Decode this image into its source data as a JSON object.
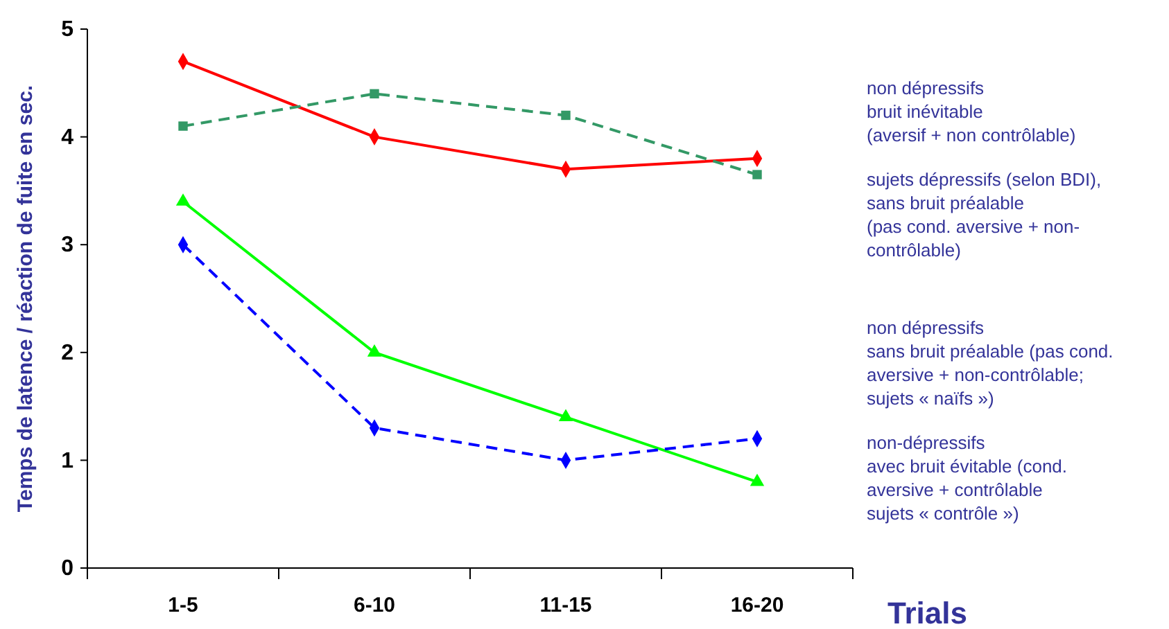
{
  "chart_data": {
    "type": "line",
    "xlabel": "Trials",
    "ylabel": "Temps de latence / réaction de fuite en sec.",
    "categories": [
      "1-5",
      "6-10",
      "11-15",
      "16-20"
    ],
    "series": [
      {
        "color": "#ff0000",
        "values": [
          4.7,
          4.0,
          3.7,
          3.8
        ],
        "marker": "diamond",
        "line_style": "solid"
      },
      {
        "color": "#339966",
        "values": [
          4.1,
          4.4,
          4.2,
          3.65
        ],
        "marker": "square",
        "line_style": "dashed"
      },
      {
        "color": "#00ff00",
        "values": [
          3.4,
          2.0,
          1.4,
          0.8
        ],
        "marker": "triangle",
        "line_style": "solid"
      },
      {
        "color": "#0000ff",
        "values": [
          3.0,
          1.3,
          1.0,
          1.2
        ],
        "marker": "diamond",
        "line_style": "dashed"
      }
    ],
    "ylim": [
      0,
      5
    ],
    "yticks": [
      0,
      1,
      2,
      3,
      4,
      5
    ],
    "annotations": [
      "non dépressifs\nbruit inévitable\n(aversif + non contrôlable)",
      "sujets dépressifs (selon BDI),\nsans bruit préalable\n(pas cond. aversive + non-\ncontrôlable)",
      "non dépressifs\nsans bruit préalable (pas cond.\naversive + non-contrôlable;\nsujets « naïfs »)",
      "non-dépressifs\navec bruit évitable (cond.\naversive + contrôlable\nsujets « contrôle »)"
    ]
  }
}
